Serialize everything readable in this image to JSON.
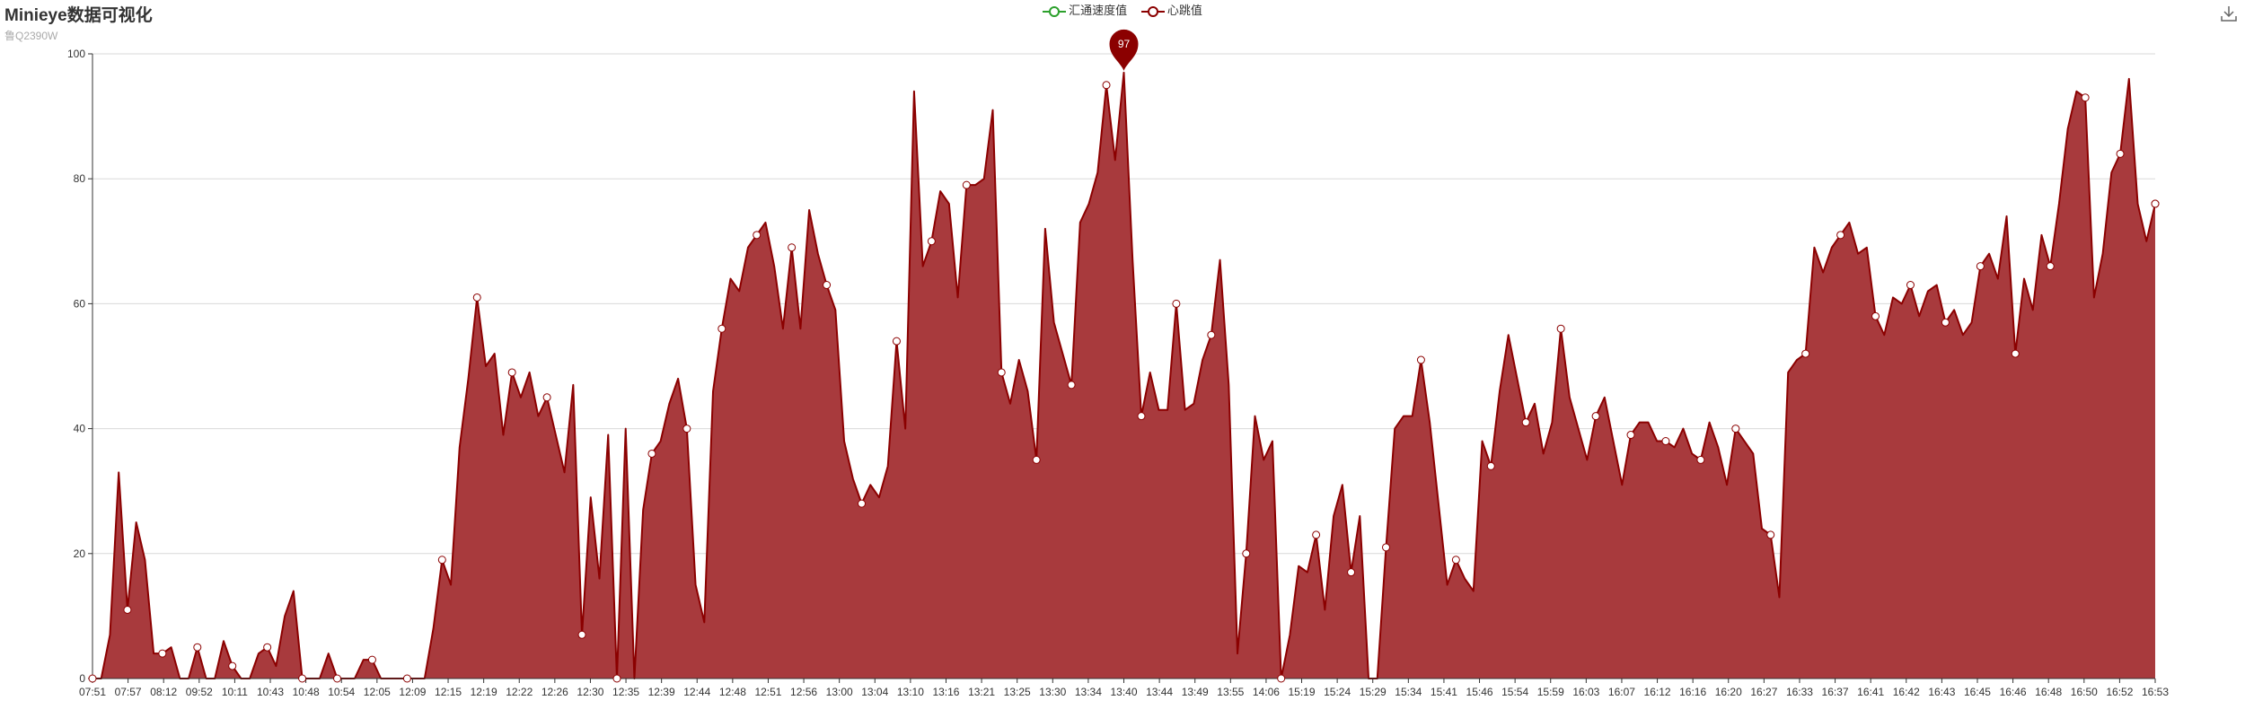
{
  "title": "Minieye数据可视化",
  "subtitle": "鲁Q2390W",
  "colors": {
    "series_velocity": "#2ca02c",
    "series_heart": "#8b0000",
    "area_fill": "#a83a3d",
    "axis": "#333333",
    "grid": "#d9d9d9"
  },
  "toolbar": {
    "save_icon": "download-icon"
  },
  "chart_data": {
    "type": "area",
    "legend_position": "top-center",
    "grid": true,
    "ylim": [
      0,
      100
    ],
    "yticks": [
      0,
      20,
      40,
      60,
      80,
      100
    ],
    "xtick_labels": [
      "07:51",
      "07:57",
      "08:12",
      "09:52",
      "10:11",
      "10:43",
      "10:48",
      "10:54",
      "12:05",
      "12:09",
      "12:15",
      "12:19",
      "12:22",
      "12:26",
      "12:30",
      "12:35",
      "12:39",
      "12:44",
      "12:48",
      "12:51",
      "12:56",
      "13:00",
      "13:04",
      "13:10",
      "13:16",
      "13:21",
      "13:25",
      "13:30",
      "13:34",
      "13:40",
      "13:44",
      "13:49",
      "13:55",
      "14:06",
      "15:19",
      "15:24",
      "15:29",
      "15:34",
      "15:41",
      "15:46",
      "15:54",
      "15:59",
      "16:03",
      "16:07",
      "16:12",
      "16:16",
      "16:20",
      "16:27",
      "16:33",
      "16:37",
      "16:41",
      "16:42",
      "16:43",
      "16:45",
      "16:46",
      "16:48",
      "16:50",
      "16:52",
      "16:53"
    ],
    "series": [
      {
        "name": "汇通速度值",
        "values": []
      },
      {
        "name": "心跳值",
        "values": [
          0,
          0,
          7,
          33,
          11,
          25,
          19,
          4,
          4,
          5,
          0,
          0,
          5,
          0,
          0,
          6,
          2,
          0,
          0,
          4,
          5,
          2,
          10,
          14,
          0,
          0,
          0,
          4,
          0,
          0,
          0,
          3,
          3,
          0,
          0,
          0,
          0,
          0,
          0,
          8,
          19,
          15,
          37,
          48,
          61,
          50,
          52,
          39,
          49,
          45,
          49,
          42,
          45,
          39,
          33,
          47,
          7,
          29,
          16,
          39,
          0,
          40,
          0,
          27,
          36,
          38,
          44,
          48,
          40,
          15,
          9,
          46,
          56,
          64,
          62,
          69,
          71,
          73,
          66,
          56,
          69,
          56,
          75,
          68,
          63,
          59,
          38,
          32,
          28,
          31,
          29,
          34,
          54,
          40,
          94,
          66,
          70,
          78,
          76,
          61,
          79,
          79,
          80,
          91,
          49,
          44,
          51,
          46,
          35,
          72,
          57,
          52,
          47,
          73,
          76,
          81,
          95,
          83,
          97,
          67,
          42,
          49,
          43,
          43,
          60,
          43,
          44,
          51,
          55,
          67,
          47,
          4,
          20,
          42,
          35,
          38,
          0,
          7,
          18,
          17,
          23,
          11,
          26,
          31,
          17,
          26,
          0,
          0,
          21,
          40,
          42,
          42,
          51,
          41,
          28,
          15,
          19,
          16,
          14,
          38,
          34,
          46,
          55,
          48,
          41,
          44,
          36,
          41,
          56,
          45,
          40,
          35,
          42,
          45,
          38,
          31,
          39,
          41,
          41,
          38,
          38,
          37,
          40,
          36,
          35,
          41,
          37,
          31,
          40,
          38,
          36,
          24,
          23,
          13,
          49,
          51,
          52,
          69,
          65,
          69,
          71,
          73,
          68,
          69,
          58,
          55,
          61,
          60,
          63,
          58,
          62,
          63,
          57,
          59,
          55,
          57,
          66,
          68,
          64,
          74,
          52,
          64,
          59,
          71,
          66,
          76,
          88,
          94,
          93,
          61,
          68,
          81,
          84,
          96,
          76,
          70,
          76
        ]
      }
    ],
    "max_marker": {
      "label": "97"
    }
  }
}
